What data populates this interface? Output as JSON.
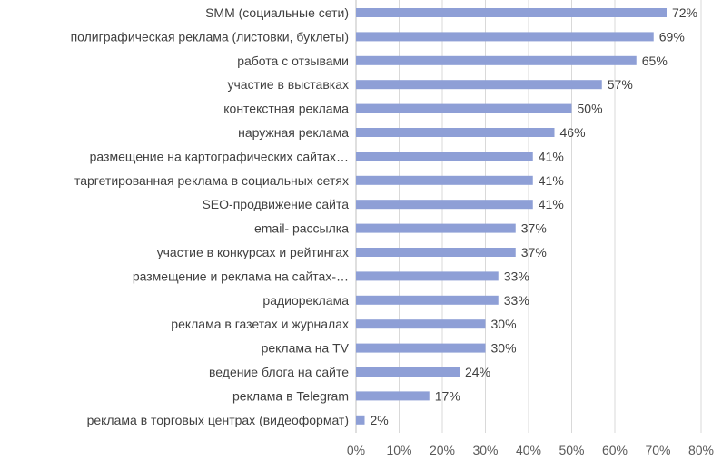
{
  "chart_data": {
    "type": "bar",
    "orientation": "horizontal",
    "title": "",
    "xlabel": "",
    "ylabel": "",
    "xlim": [
      0,
      80
    ],
    "x_ticks": [
      "0%",
      "10%",
      "20%",
      "30%",
      "40%",
      "50%",
      "60%",
      "70%",
      "80%"
    ],
    "grid": true,
    "legend": "none",
    "bar_color": "#8e9fd6",
    "categories": [
      "SMM (социальные сети)",
      "полиграфическая реклама (листовки, буклеты)",
      "работа с отзывами",
      "участие в выставках",
      "контекстная реклама",
      "наружная реклама",
      "размещение на картографических сайтах…",
      "таргетированная реклама в социальных сетях",
      "SEO-продвижение сайта",
      "email- рассылка",
      "участие в конкурсах и рейтингах",
      "размещение и реклама на сайтах-…",
      "радиореклама",
      "реклама в газетах и журналах",
      "реклама на TV",
      "ведение блога на сайте",
      "реклама в Telegram",
      "реклама в торговых центрах (видеоформат)"
    ],
    "values": [
      72,
      69,
      65,
      57,
      50,
      46,
      41,
      41,
      41,
      37,
      37,
      33,
      33,
      30,
      30,
      24,
      17,
      2
    ],
    "value_labels": [
      "72%",
      "69%",
      "65%",
      "57%",
      "50%",
      "46%",
      "41%",
      "41%",
      "41%",
      "37%",
      "37%",
      "33%",
      "33%",
      "30%",
      "30%",
      "24%",
      "17%",
      "2%"
    ]
  }
}
